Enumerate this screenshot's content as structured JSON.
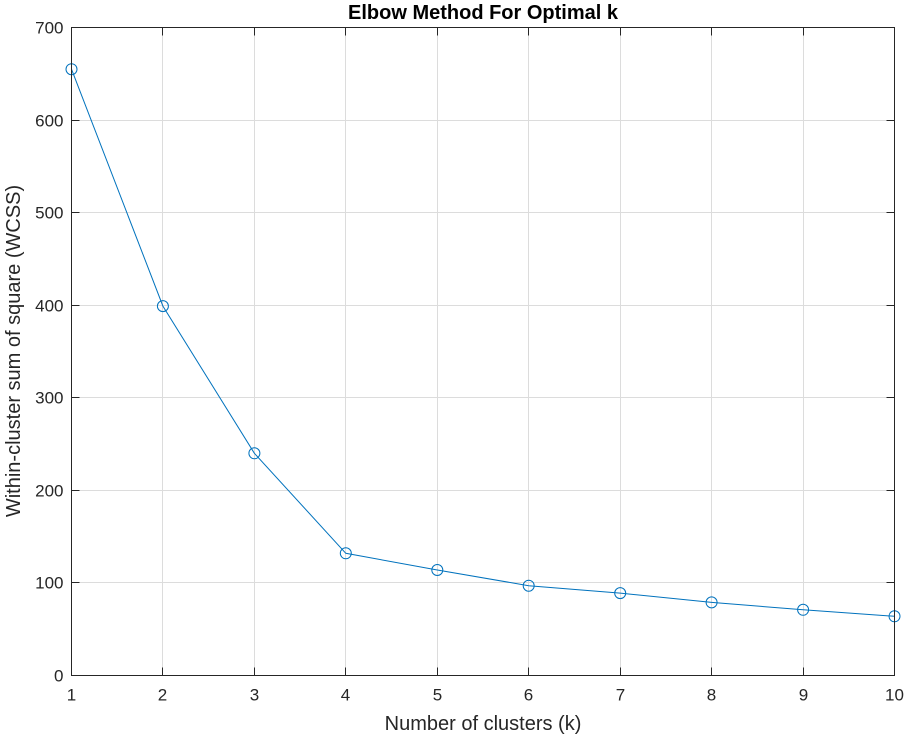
{
  "chart_data": {
    "type": "line",
    "title": "Elbow Method For Optimal k",
    "xlabel": "Number of clusters (k)",
    "ylabel": "Within-cluster sum of square (WCSS)",
    "xlim": [
      1,
      10
    ],
    "ylim": [
      0,
      700
    ],
    "xticks": [
      1,
      2,
      3,
      4,
      5,
      6,
      7,
      8,
      9,
      10
    ],
    "yticks": [
      0,
      100,
      200,
      300,
      400,
      500,
      600,
      700
    ],
    "grid": true,
    "marker": "circle",
    "color": "#0072bd",
    "x": [
      1,
      2,
      3,
      4,
      5,
      6,
      7,
      8,
      9,
      10
    ],
    "y": [
      655,
      399,
      240,
      132,
      114,
      97,
      89,
      79,
      71,
      64
    ]
  }
}
